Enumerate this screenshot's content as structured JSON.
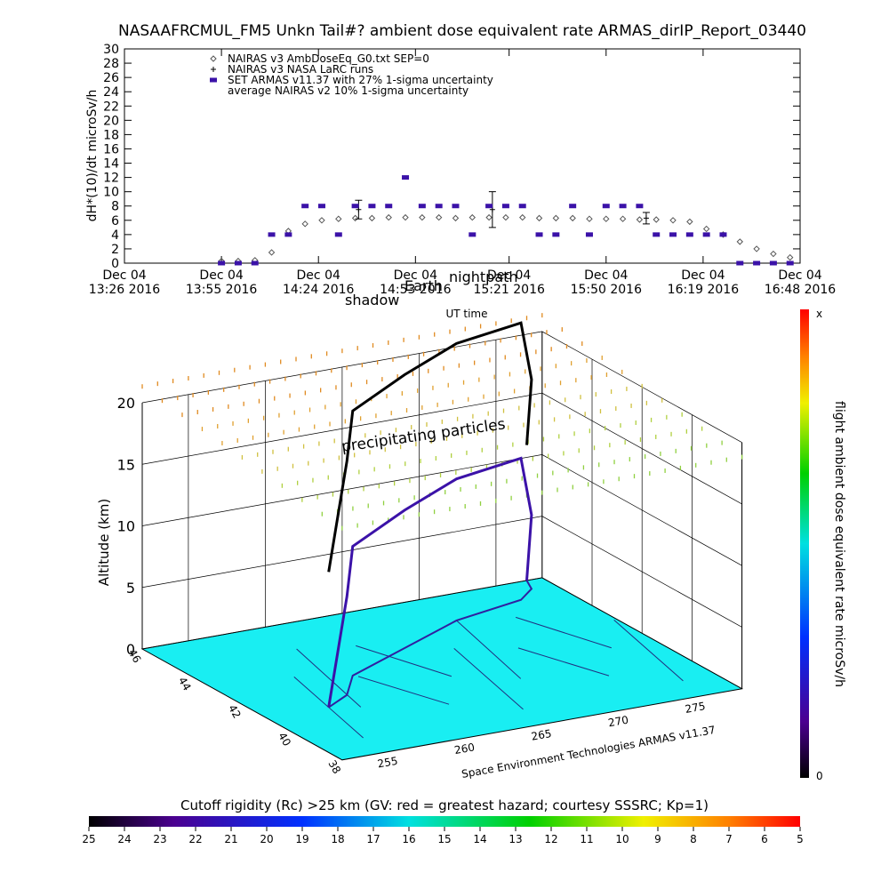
{
  "chart_data": [
    {
      "type": "line",
      "title": "NASAAFRCMUL_FM5 Unkn Tail#? ambient dose equivalent rate ARMAS_dirIP_Report_03440",
      "ylabel": "dH*(10)/dt microSv/h",
      "xlabel": "UT time",
      "xlim": [
        "2016-12-04 13:26",
        "2016-12-04 16:48"
      ],
      "xticks": [
        {
          "value": "2016-12-04 13:26",
          "label": "Dec 04\n13:26 2016"
        },
        {
          "value": "2016-12-04 13:55",
          "label": "Dec 04\n13:55 2016"
        },
        {
          "value": "2016-12-04 14:24",
          "label": "Dec 04\n14:24 2016"
        },
        {
          "value": "2016-12-04 14:53",
          "label": "Dec 04\n14:53 2016"
        },
        {
          "value": "2016-12-04 15:21",
          "label": "Dec 04\n15:21 2016"
        },
        {
          "value": "2016-12-04 15:50",
          "label": "Dec 04\n15:50 2016"
        },
        {
          "value": "2016-12-04 16:19",
          "label": "Dec 04\n16:19 2016"
        },
        {
          "value": "2016-12-04 16:48",
          "label": "Dec 04\n16:48 2016"
        }
      ],
      "ylim": [
        0,
        30
      ],
      "yticks": [
        0,
        2,
        4,
        6,
        8,
        10,
        12,
        14,
        16,
        18,
        20,
        22,
        24,
        26,
        28,
        30
      ],
      "series": [
        {
          "name": "NAIRAS v3 AmbDoseEq_G0.txt SEP=0",
          "color": "#555555",
          "marker": "diamond",
          "x": [
            "2016-12-04 13:55",
            "2016-12-04 14:00",
            "2016-12-04 14:05",
            "2016-12-04 14:10",
            "2016-12-04 14:15",
            "2016-12-04 14:20",
            "2016-12-04 14:25",
            "2016-12-04 14:30",
            "2016-12-04 14:35",
            "2016-12-04 14:40",
            "2016-12-04 14:45",
            "2016-12-04 14:50",
            "2016-12-04 14:55",
            "2016-12-04 15:00",
            "2016-12-04 15:05",
            "2016-12-04 15:10",
            "2016-12-04 15:15",
            "2016-12-04 15:20",
            "2016-12-04 15:25",
            "2016-12-04 15:30",
            "2016-12-04 15:35",
            "2016-12-04 15:40",
            "2016-12-04 15:45",
            "2016-12-04 15:50",
            "2016-12-04 15:55",
            "2016-12-04 16:00",
            "2016-12-04 16:05",
            "2016-12-04 16:10",
            "2016-12-04 16:15",
            "2016-12-04 16:20",
            "2016-12-04 16:25",
            "2016-12-04 16:30",
            "2016-12-04 16:35",
            "2016-12-04 16:40",
            "2016-12-04 16:45"
          ],
          "values": [
            0.3,
            0.3,
            0.4,
            1.5,
            4.5,
            5.5,
            6.0,
            6.2,
            6.3,
            6.3,
            6.4,
            6.4,
            6.4,
            6.4,
            6.3,
            6.4,
            6.4,
            6.4,
            6.4,
            6.3,
            6.3,
            6.3,
            6.2,
            6.2,
            6.2,
            6.1,
            6.1,
            6.0,
            5.8,
            4.8,
            4,
            3,
            2,
            1.3,
            0.8
          ]
        },
        {
          "name": "NAIRAS v3 NASA LaRC runs",
          "color": "#000000",
          "marker": "plus",
          "x": [
            "2016-12-04 14:36",
            "2016-12-04 15:16",
            "2016-12-04 16:02"
          ],
          "values": [
            7.5,
            7.5,
            6.3
          ],
          "errors": [
            1.3,
            2.5,
            0.8
          ]
        },
        {
          "name": "SET ARMAS v11.37 with 27% 1-sigma uncertainty",
          "color": "#3b12a8",
          "marker": "square",
          "x": [
            "2016-12-04 13:55",
            "2016-12-04 14:00",
            "2016-12-04 14:05",
            "2016-12-04 14:10",
            "2016-12-04 14:15",
            "2016-12-04 14:20",
            "2016-12-04 14:25",
            "2016-12-04 14:30",
            "2016-12-04 14:35",
            "2016-12-04 14:40",
            "2016-12-04 14:45",
            "2016-12-04 14:50",
            "2016-12-04 14:55",
            "2016-12-04 15:00",
            "2016-12-04 15:05",
            "2016-12-04 15:10",
            "2016-12-04 15:15",
            "2016-12-04 15:20",
            "2016-12-04 15:25",
            "2016-12-04 15:30",
            "2016-12-04 15:35",
            "2016-12-04 15:40",
            "2016-12-04 15:45",
            "2016-12-04 15:50",
            "2016-12-04 15:55",
            "2016-12-04 16:00",
            "2016-12-04 16:05",
            "2016-12-04 16:10",
            "2016-12-04 16:15",
            "2016-12-04 16:20",
            "2016-12-04 16:25",
            "2016-12-04 16:30",
            "2016-12-04 16:35",
            "2016-12-04 16:40",
            "2016-12-04 16:45"
          ],
          "values": [
            0,
            0,
            0,
            4,
            4,
            8,
            8,
            4,
            8,
            8,
            8,
            12,
            8,
            8,
            8,
            4,
            8,
            8,
            8,
            4,
            4,
            8,
            4,
            8,
            8,
            8,
            4,
            4,
            4,
            4,
            4,
            0,
            0,
            0,
            0
          ]
        },
        {
          "name": "average NAIRAS v2 10% 1-sigma uncertainty",
          "color": "#000000",
          "marker": "none",
          "x": [],
          "values": []
        }
      ]
    },
    {
      "type": "surface3d",
      "zlabel": "Altitude (km)",
      "xlim": [
        252,
        278
      ],
      "xticks": [
        255,
        260,
        265,
        270,
        275
      ],
      "ylim": [
        46,
        38
      ],
      "yticks": [
        46,
        44,
        42,
        40,
        38
      ],
      "zlim": [
        0,
        20
      ],
      "zticks": [
        0,
        5,
        10,
        15,
        20
      ],
      "annotations": [
        "precipitating particles",
        "shadow",
        "Earth",
        "nightpath"
      ],
      "credit": "Space Environment Technologies ARMAS v11.37",
      "track": {
        "lon": [
          256,
          258,
          260,
          265,
          270,
          275,
          276.5,
          277
        ],
        "lat": [
          41,
          41.5,
          42.5,
          43.5,
          44.5,
          45,
          45.5,
          46
        ],
        "alt": [
          0,
          8,
          10.5,
          11.2,
          11.5,
          11.5,
          6,
          0
        ]
      }
    },
    {
      "type": "colorbar",
      "label": "flight ambient dose equivalent rate microSv/h",
      "end_labels": [
        "0",
        "x"
      ]
    },
    {
      "type": "colorbar",
      "title": "Cutoff rigidity (Rc) >25 km (GV: red = greatest hazard; courtesy SSSRC; Kp=1)",
      "lim": [
        25,
        5
      ],
      "ticks": [
        25,
        24,
        23,
        22,
        21,
        20,
        19,
        18,
        17,
        16,
        15,
        14,
        13,
        12,
        11,
        10,
        9,
        8,
        7,
        6,
        5
      ]
    }
  ]
}
